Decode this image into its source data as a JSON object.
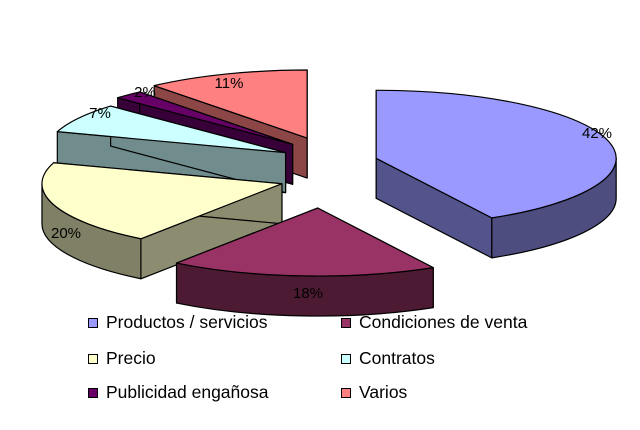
{
  "chart_data": {
    "type": "pie",
    "style": "3d-exploded",
    "title": "",
    "slices": [
      {
        "label": "Productos / servicios",
        "value": 42,
        "value_label": "42%",
        "color": "#9999ff"
      },
      {
        "label": "Condiciones de venta",
        "value": 18,
        "value_label": "18%",
        "color": "#993366"
      },
      {
        "label": "Precio",
        "value": 20,
        "value_label": "20%",
        "color": "#ffffcc"
      },
      {
        "label": "Contratos",
        "value": 7,
        "value_label": "7%",
        "color": "#ccffff"
      },
      {
        "label": "Publicidad engañosa",
        "value": 2,
        "value_label": "2%",
        "color": "#660066"
      },
      {
        "label": "Varios",
        "value": 11,
        "value_label": "11%",
        "color": "#ff8080"
      }
    ],
    "legend_position": "bottom"
  }
}
